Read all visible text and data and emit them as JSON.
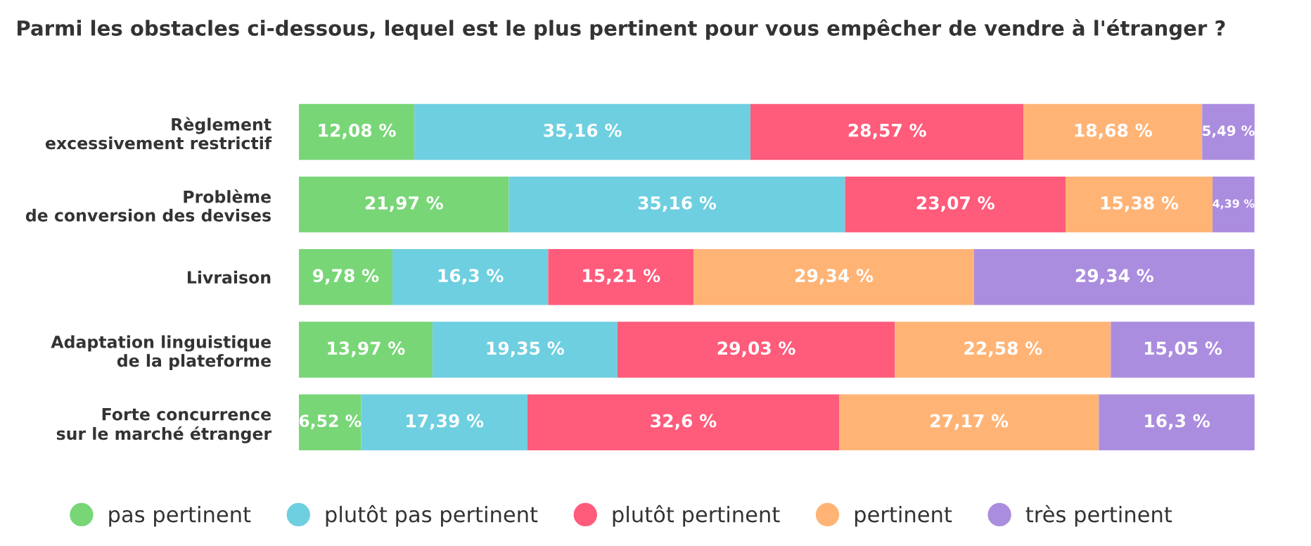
{
  "chart_data": {
    "type": "bar",
    "orientation": "horizontal",
    "stacked": true,
    "title": "Parmi les obstacles ci-dessous, lequel est le plus pertinent pour vous empêcher de vendre à l'étranger ?",
    "categories": [
      "Règlement\nexcessivement restrictif",
      "Problème\nde conversion des devises",
      "Livraison",
      "Adaptation linguistique\nde la plateforme",
      "Forte concurrence\nsur le marché étranger"
    ],
    "series": [
      {
        "name": "pas pertinent",
        "color": "#78d677",
        "values": [
          12.08,
          21.97,
          9.78,
          13.97,
          6.52
        ],
        "value_labels": [
          "12,08 %",
          "21,97 %",
          "9,78 %",
          "13,97 %",
          "6,52 %"
        ]
      },
      {
        "name": "plutôt pas pertinent",
        "color": "#6ecfe0",
        "values": [
          35.16,
          35.16,
          16.3,
          19.35,
          17.39
        ],
        "value_labels": [
          "35,16 %",
          "35,16 %",
          "16,3 %",
          "19,35 %",
          "17,39 %"
        ]
      },
      {
        "name": "plutôt pertinent",
        "color": "#ff5b7b",
        "values": [
          28.57,
          23.07,
          15.21,
          29.03,
          32.6
        ],
        "value_labels": [
          "28,57 %",
          "23,07 %",
          "15,21 %",
          "29,03 %",
          "32,6 %"
        ]
      },
      {
        "name": "pertinent",
        "color": "#ffb476",
        "values": [
          18.68,
          15.38,
          29.34,
          22.58,
          27.17
        ],
        "value_labels": [
          "18,68 %",
          "15,38 %",
          "29,34 %",
          "22,58 %",
          "27,17 %"
        ]
      },
      {
        "name": "très pertinent",
        "color": "#ab8ddf",
        "values": [
          5.49,
          4.39,
          29.34,
          15.05,
          16.3
        ],
        "value_labels": [
          "5,49 %",
          "4,39 %",
          "29,34 %",
          "15,05 %",
          "16,3 %"
        ]
      }
    ],
    "legend": "bottom",
    "grid": false
  }
}
